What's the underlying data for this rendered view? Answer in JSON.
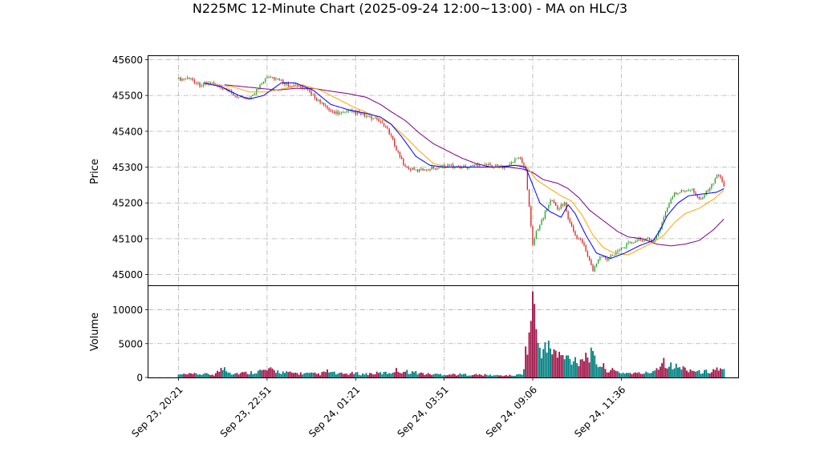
{
  "chart_data": {
    "type": "candlestick",
    "title": "N225MC 12-Minute Chart (2025-09-24 12:00~13:00) - MA on HLC/3",
    "price_panel": {
      "ylabel": "Price",
      "ylim": [
        44970,
        45610
      ],
      "yticks": [
        45000,
        45100,
        45200,
        45300,
        45400,
        45500,
        45600
      ],
      "grid": true
    },
    "volume_panel": {
      "ylabel": "Volume",
      "ylim": [
        0,
        13500
      ],
      "yticks": [
        0,
        5000,
        10000
      ],
      "grid": true
    },
    "x_axis": {
      "ticks": [
        {
          "index": 0,
          "label": "Sep 23, 20:21"
        },
        {
          "index": 25,
          "label": "Sep 23, 22:51"
        },
        {
          "index": 50,
          "label": "Sep 24, 01:21"
        },
        {
          "index": 75,
          "label": "Sep 24, 03:51"
        },
        {
          "index": 100,
          "label": "Sep 24, 09:06"
        },
        {
          "index": 125,
          "label": "Sep 24, 11:36"
        }
      ],
      "range": [
        -8.5,
        158
      ]
    },
    "series_colors": {
      "up": "#2ca02c",
      "down": "#d62728",
      "ma_fast": "#0000ff",
      "ma_mid": "#ffa500",
      "ma_slow": "#800080",
      "volume_up": "#008080",
      "volume_down": "#a0184a"
    },
    "price_anchors": [
      [
        0,
        45545
      ],
      [
        3,
        45550
      ],
      [
        6,
        45530
      ],
      [
        9,
        45535
      ],
      [
        12,
        45520
      ],
      [
        15,
        45505
      ],
      [
        18,
        45490
      ],
      [
        21,
        45500
      ],
      [
        23,
        45530
      ],
      [
        25,
        45555
      ],
      [
        28,
        45545
      ],
      [
        31,
        45530
      ],
      [
        34,
        45525
      ],
      [
        37,
        45510
      ],
      [
        40,
        45480
      ],
      [
        43,
        45455
      ],
      [
        46,
        45450
      ],
      [
        49,
        45455
      ],
      [
        52,
        45445
      ],
      [
        55,
        45435
      ],
      [
        58,
        45420
      ],
      [
        60,
        45385
      ],
      [
        62,
        45340
      ],
      [
        64,
        45300
      ],
      [
        67,
        45290
      ],
      [
        70,
        45295
      ],
      [
        73,
        45300
      ],
      [
        76,
        45305
      ],
      [
        79,
        45300
      ],
      [
        82,
        45300
      ],
      [
        85,
        45310
      ],
      [
        88,
        45305
      ],
      [
        91,
        45300
      ],
      [
        94,
        45310
      ],
      [
        96,
        45330
      ],
      [
        98,
        45290
      ],
      [
        99,
        45190
      ],
      [
        100,
        45080
      ],
      [
        101,
        45120
      ],
      [
        103,
        45160
      ],
      [
        105,
        45210
      ],
      [
        107,
        45185
      ],
      [
        109,
        45200
      ],
      [
        110,
        45155
      ],
      [
        112,
        45110
      ],
      [
        114,
        45090
      ],
      [
        116,
        45040
      ],
      [
        117,
        45010
      ],
      [
        119,
        45050
      ],
      [
        121,
        45045
      ],
      [
        123,
        45060
      ],
      [
        126,
        45080
      ],
      [
        129,
        45095
      ],
      [
        132,
        45100
      ],
      [
        134,
        45090
      ],
      [
        136,
        45130
      ],
      [
        138,
        45190
      ],
      [
        140,
        45225
      ],
      [
        143,
        45235
      ],
      [
        145,
        45240
      ],
      [
        147,
        45210
      ],
      [
        149,
        45230
      ],
      [
        151,
        45255
      ],
      [
        152,
        45280
      ],
      [
        153,
        45270
      ],
      [
        154,
        45250
      ]
    ],
    "ma_fast_anchors": [
      [
        7,
        45535
      ],
      [
        12,
        45525
      ],
      [
        17,
        45500
      ],
      [
        20,
        45490
      ],
      [
        24,
        45500
      ],
      [
        29,
        45535
      ],
      [
        33,
        45535
      ],
      [
        38,
        45515
      ],
      [
        43,
        45475
      ],
      [
        48,
        45460
      ],
      [
        53,
        45450
      ],
      [
        57,
        45440
      ],
      [
        60,
        45420
      ],
      [
        63,
        45385
      ],
      [
        67,
        45330
      ],
      [
        71,
        45305
      ],
      [
        75,
        45300
      ],
      [
        80,
        45300
      ],
      [
        85,
        45300
      ],
      [
        90,
        45300
      ],
      [
        95,
        45305
      ],
      [
        98,
        45300
      ],
      [
        100,
        45250
      ],
      [
        102,
        45200
      ],
      [
        105,
        45175
      ],
      [
        108,
        45160
      ],
      [
        110,
        45195
      ],
      [
        112,
        45170
      ],
      [
        115,
        45110
      ],
      [
        118,
        45060
      ],
      [
        122,
        45045
      ],
      [
        126,
        45060
      ],
      [
        130,
        45080
      ],
      [
        134,
        45095
      ],
      [
        136,
        45125
      ],
      [
        138,
        45165
      ],
      [
        141,
        45200
      ],
      [
        144,
        45220
      ],
      [
        148,
        45225
      ],
      [
        152,
        45230
      ],
      [
        154,
        45240
      ]
    ],
    "ma_mid_anchors": [
      [
        10,
        45530
      ],
      [
        15,
        45525
      ],
      [
        20,
        45510
      ],
      [
        25,
        45510
      ],
      [
        30,
        45520
      ],
      [
        35,
        45530
      ],
      [
        40,
        45515
      ],
      [
        45,
        45490
      ],
      [
        50,
        45465
      ],
      [
        55,
        45445
      ],
      [
        60,
        45420
      ],
      [
        64,
        45385
      ],
      [
        68,
        45345
      ],
      [
        72,
        45310
      ],
      [
        76,
        45300
      ],
      [
        82,
        45300
      ],
      [
        88,
        45300
      ],
      [
        94,
        45305
      ],
      [
        98,
        45305
      ],
      [
        101,
        45265
      ],
      [
        104,
        45245
      ],
      [
        108,
        45220
      ],
      [
        111,
        45205
      ],
      [
        114,
        45165
      ],
      [
        117,
        45110
      ],
      [
        120,
        45075
      ],
      [
        123,
        45060
      ],
      [
        127,
        45055
      ],
      [
        131,
        45075
      ],
      [
        134,
        45090
      ],
      [
        137,
        45110
      ],
      [
        140,
        45145
      ],
      [
        143,
        45170
      ],
      [
        147,
        45185
      ],
      [
        151,
        45210
      ],
      [
        154,
        45235
      ]
    ],
    "ma_slow_anchors": [
      [
        13,
        45530
      ],
      [
        18,
        45525
      ],
      [
        23,
        45520
      ],
      [
        28,
        45515
      ],
      [
        33,
        45520
      ],
      [
        38,
        45520
      ],
      [
        43,
        45512
      ],
      [
        48,
        45505
      ],
      [
        53,
        45495
      ],
      [
        57,
        45475
      ],
      [
        60,
        45455
      ],
      [
        64,
        45430
      ],
      [
        68,
        45395
      ],
      [
        72,
        45365
      ],
      [
        76,
        45345
      ],
      [
        80,
        45325
      ],
      [
        84,
        45310
      ],
      [
        88,
        45300
      ],
      [
        93,
        45300
      ],
      [
        97,
        45295
      ],
      [
        100,
        45285
      ],
      [
        103,
        45265
      ],
      [
        107,
        45255
      ],
      [
        110,
        45240
      ],
      [
        113,
        45215
      ],
      [
        116,
        45180
      ],
      [
        120,
        45150
      ],
      [
        124,
        45120
      ],
      [
        127,
        45105
      ],
      [
        131,
        45100
      ],
      [
        135,
        45085
      ],
      [
        139,
        45080
      ],
      [
        143,
        45085
      ],
      [
        147,
        45095
      ],
      [
        151,
        45125
      ],
      [
        154,
        45155
      ]
    ],
    "volume_anchors": [
      [
        0,
        400
      ],
      [
        5,
        500
      ],
      [
        10,
        450
      ],
      [
        13,
        1500
      ],
      [
        15,
        600
      ],
      [
        20,
        700
      ],
      [
        22,
        900
      ],
      [
        24,
        1000
      ],
      [
        26,
        1100
      ],
      [
        28,
        900
      ],
      [
        30,
        700
      ],
      [
        35,
        600
      ],
      [
        40,
        500
      ],
      [
        42,
        900
      ],
      [
        45,
        500
      ],
      [
        50,
        600
      ],
      [
        52,
        500
      ],
      [
        55,
        600
      ],
      [
        60,
        700
      ],
      [
        61,
        1100
      ],
      [
        63,
        900
      ],
      [
        66,
        800
      ],
      [
        70,
        500
      ],
      [
        75,
        450
      ],
      [
        80,
        450
      ],
      [
        85,
        400
      ],
      [
        90,
        300
      ],
      [
        95,
        300
      ],
      [
        97,
        500
      ],
      [
        98,
        3500
      ],
      [
        99,
        6000
      ],
      [
        100,
        12600
      ],
      [
        101,
        6000
      ],
      [
        102,
        4400
      ],
      [
        104,
        4000
      ],
      [
        105,
        4500
      ],
      [
        107,
        3200
      ],
      [
        110,
        2800
      ],
      [
        113,
        2600
      ],
      [
        116,
        3500
      ],
      [
        118,
        2200
      ],
      [
        121,
        1200
      ],
      [
        125,
        700
      ],
      [
        130,
        600
      ],
      [
        133,
        700
      ],
      [
        135,
        1400
      ],
      [
        137,
        2500
      ],
      [
        139,
        1700
      ],
      [
        141,
        1500
      ],
      [
        143,
        1300
      ],
      [
        145,
        1100
      ],
      [
        147,
        800
      ],
      [
        150,
        900
      ],
      [
        152,
        1300
      ],
      [
        154,
        1000
      ]
    ]
  }
}
